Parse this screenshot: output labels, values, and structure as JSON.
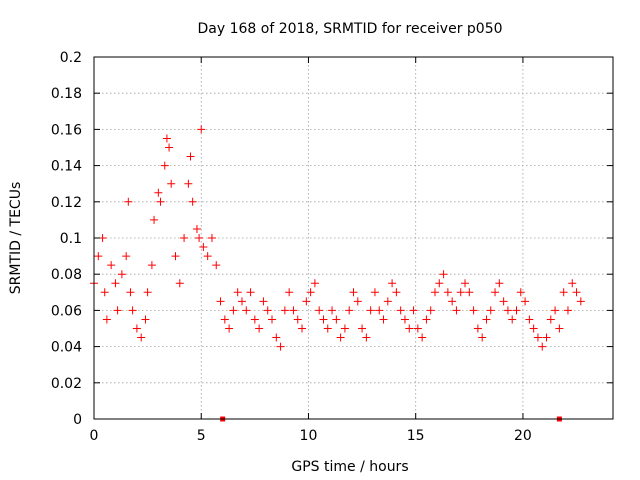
{
  "chart_data": {
    "type": "scatter",
    "title": "Day 168 of 2018, SRMTID for receiver p050",
    "xlabel": "GPS time / hours",
    "ylabel": "SRMTID / TECUs",
    "xlim": [
      0,
      24.2
    ],
    "ylim": [
      0,
      0.2
    ],
    "x_ticks": [
      0,
      5,
      10,
      15,
      20
    ],
    "x_tick_labels": [
      "0",
      "5",
      "10",
      "15",
      "20"
    ],
    "y_ticks": [
      0,
      0.02,
      0.04,
      0.06,
      0.08,
      0.1,
      0.12,
      0.14,
      0.16,
      0.18,
      0.2
    ],
    "y_tick_labels": [
      "0",
      "0.02",
      "0.04",
      "0.06",
      "0.08",
      "0.1",
      "0.12",
      "0.14",
      "0.16",
      "0.18",
      "0.2"
    ],
    "grid": true,
    "marker": "plus",
    "color": "#ff0000",
    "series": [
      {
        "name": "SRMTID",
        "x": [
          0.0,
          0.2,
          0.4,
          0.5,
          0.6,
          0.8,
          1.0,
          1.1,
          1.3,
          1.5,
          1.6,
          1.7,
          1.8,
          2.0,
          2.2,
          2.4,
          2.5,
          2.7,
          2.8,
          3.0,
          3.1,
          3.3,
          3.4,
          3.5,
          3.6,
          3.8,
          4.0,
          4.2,
          4.4,
          4.5,
          4.6,
          4.8,
          4.9,
          5.0,
          5.1,
          5.3,
          5.5,
          5.7,
          5.9,
          6.1,
          6.3,
          6.5,
          6.7,
          6.9,
          7.1,
          7.3,
          7.5,
          7.7,
          7.9,
          8.1,
          8.3,
          8.5,
          8.7,
          8.9,
          9.1,
          9.3,
          9.5,
          9.7,
          9.9,
          10.1,
          10.3,
          10.5,
          10.7,
          10.9,
          11.1,
          11.3,
          11.5,
          11.7,
          11.9,
          12.1,
          12.3,
          12.5,
          12.7,
          12.9,
          13.1,
          13.3,
          13.5,
          13.7,
          13.9,
          14.1,
          14.3,
          14.5,
          14.7,
          14.9,
          15.1,
          15.3,
          15.5,
          15.7,
          15.9,
          16.1,
          16.3,
          16.5,
          16.7,
          16.9,
          17.1,
          17.3,
          17.5,
          17.7,
          17.9,
          18.1,
          18.3,
          18.5,
          18.7,
          18.9,
          19.1,
          19.3,
          19.5,
          19.7,
          19.9,
          20.1,
          20.3,
          20.5,
          20.7,
          20.9,
          21.1,
          21.3,
          21.5,
          21.7,
          21.9,
          22.1,
          22.3,
          22.5,
          22.7
        ],
        "y": [
          0.075,
          0.09,
          0.1,
          0.07,
          0.055,
          0.085,
          0.075,
          0.06,
          0.08,
          0.09,
          0.12,
          0.07,
          0.06,
          0.05,
          0.045,
          0.055,
          0.07,
          0.085,
          0.11,
          0.125,
          0.12,
          0.14,
          0.155,
          0.15,
          0.13,
          0.09,
          0.075,
          0.1,
          0.13,
          0.145,
          0.12,
          0.105,
          0.1,
          0.16,
          0.095,
          0.09,
          0.1,
          0.085,
          0.065,
          0.055,
          0.05,
          0.06,
          0.07,
          0.065,
          0.06,
          0.07,
          0.055,
          0.05,
          0.065,
          0.06,
          0.055,
          0.045,
          0.04,
          0.06,
          0.07,
          0.06,
          0.055,
          0.05,
          0.065,
          0.07,
          0.075,
          0.06,
          0.055,
          0.05,
          0.06,
          0.055,
          0.045,
          0.05,
          0.06,
          0.07,
          0.065,
          0.05,
          0.045,
          0.06,
          0.07,
          0.06,
          0.055,
          0.065,
          0.075,
          0.07,
          0.06,
          0.055,
          0.05,
          0.06,
          0.05,
          0.045,
          0.055,
          0.06,
          0.07,
          0.075,
          0.08,
          0.07,
          0.065,
          0.06,
          0.07,
          0.075,
          0.07,
          0.06,
          0.05,
          0.045,
          0.055,
          0.06,
          0.07,
          0.075,
          0.065,
          0.06,
          0.055,
          0.06,
          0.07,
          0.065,
          0.055,
          0.05,
          0.045,
          0.04,
          0.045,
          0.055,
          0.06,
          0.05,
          0.07,
          0.06,
          0.075,
          0.07,
          0.065
        ]
      }
    ],
    "markers_on_axis": [
      {
        "x": 6.0,
        "y": 0
      },
      {
        "x": 21.7,
        "y": 0
      }
    ]
  }
}
